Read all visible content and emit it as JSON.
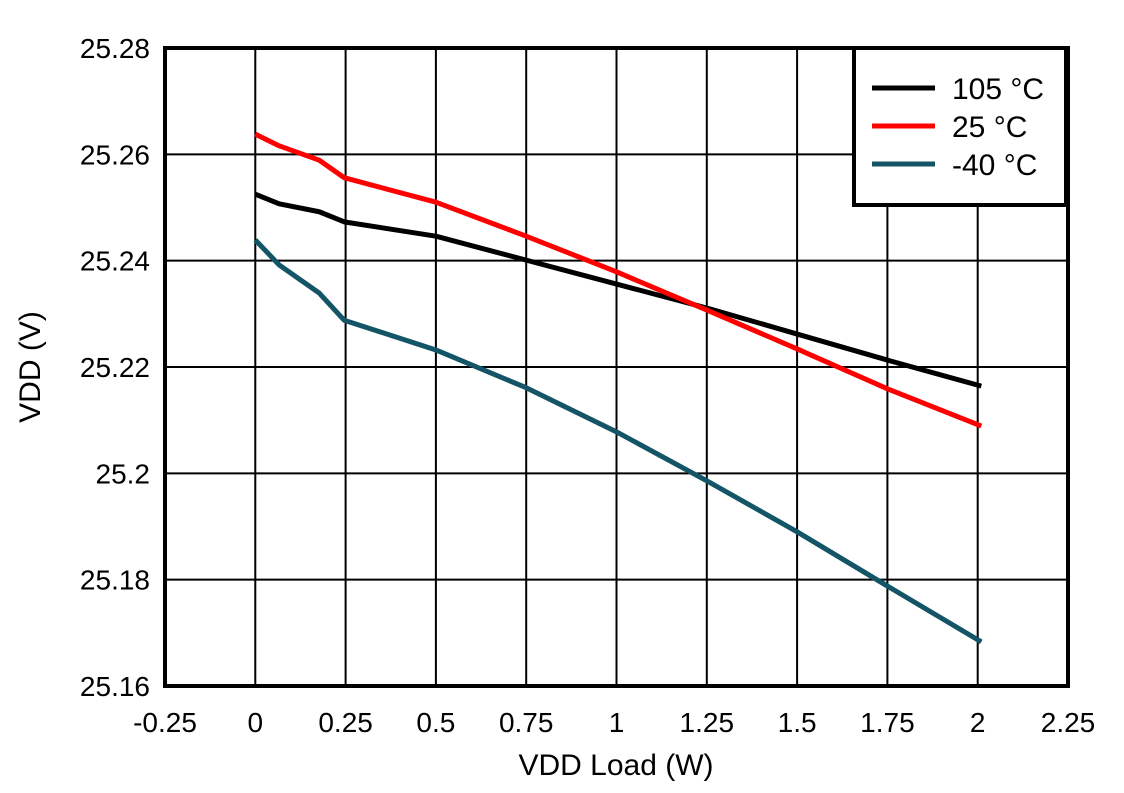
{
  "chart_data": {
    "type": "line",
    "title": "",
    "xlabel": "VDD Load (W)",
    "ylabel": "VDD (V)",
    "xlim": [
      -0.25,
      2.25
    ],
    "ylim": [
      25.16,
      25.28
    ],
    "xticks": [
      "-0.25",
      "0",
      "0.25",
      "0.5",
      "0.75",
      "1",
      "1.25",
      "1.5",
      "1.75",
      "2",
      "2.25"
    ],
    "yticks": [
      "25.16",
      "25.18",
      "25.2",
      "25.22",
      "25.24",
      "25.26",
      "25.28"
    ],
    "grid": true,
    "legend_position": "top-right",
    "x": [
      0,
      0.066,
      0.177,
      0.246,
      0.5,
      0.75,
      1.0,
      1.25,
      1.5,
      1.75,
      2.01
    ],
    "series": [
      {
        "name": "105 °C",
        "color": "#000000",
        "values": [
          25.2525,
          25.2507,
          25.2492,
          25.2473,
          25.2446,
          25.2401,
          25.2356,
          25.2311,
          25.2262,
          25.2213,
          25.2164
        ]
      },
      {
        "name": "25 °C",
        "color": "#ff0000",
        "values": [
          25.2638,
          25.2616,
          25.2589,
          25.2556,
          25.251,
          25.2446,
          25.2379,
          25.2307,
          25.2234,
          25.2159,
          25.2089
        ]
      },
      {
        "name": "-40 °C",
        "color": "#135566",
        "values": [
          25.2439,
          25.2392,
          25.2339,
          25.2288,
          25.2232,
          25.2161,
          25.2078,
          25.1986,
          25.189,
          25.1788,
          25.1683
        ]
      }
    ]
  }
}
